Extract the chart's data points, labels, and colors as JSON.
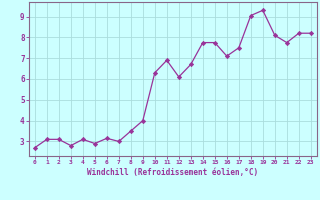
{
  "x": [
    0,
    1,
    2,
    3,
    4,
    5,
    6,
    7,
    8,
    9,
    10,
    11,
    12,
    13,
    14,
    15,
    16,
    17,
    18,
    19,
    20,
    21,
    22,
    23
  ],
  "y": [
    2.7,
    3.1,
    3.1,
    2.8,
    3.1,
    2.9,
    3.15,
    3.0,
    3.5,
    4.0,
    6.3,
    6.9,
    6.1,
    6.7,
    7.75,
    7.75,
    7.1,
    7.5,
    9.05,
    9.3,
    8.1,
    7.75,
    8.2,
    8.2
  ],
  "line_color": "#993399",
  "marker_color": "#993399",
  "bg_color": "#ccffff",
  "grid_color": "#aadddd",
  "axis_label_color": "#993399",
  "tick_color": "#993399",
  "spine_color": "#886688",
  "xlabel": "Windchill (Refroidissement éolien,°C)",
  "ylabel": "",
  "xlim": [
    -0.5,
    23.5
  ],
  "ylim": [
    2.3,
    9.7
  ],
  "yticks": [
    3,
    4,
    5,
    6,
    7,
    8,
    9
  ],
  "xticks": [
    0,
    1,
    2,
    3,
    4,
    5,
    6,
    7,
    8,
    9,
    10,
    11,
    12,
    13,
    14,
    15,
    16,
    17,
    18,
    19,
    20,
    21,
    22,
    23
  ]
}
